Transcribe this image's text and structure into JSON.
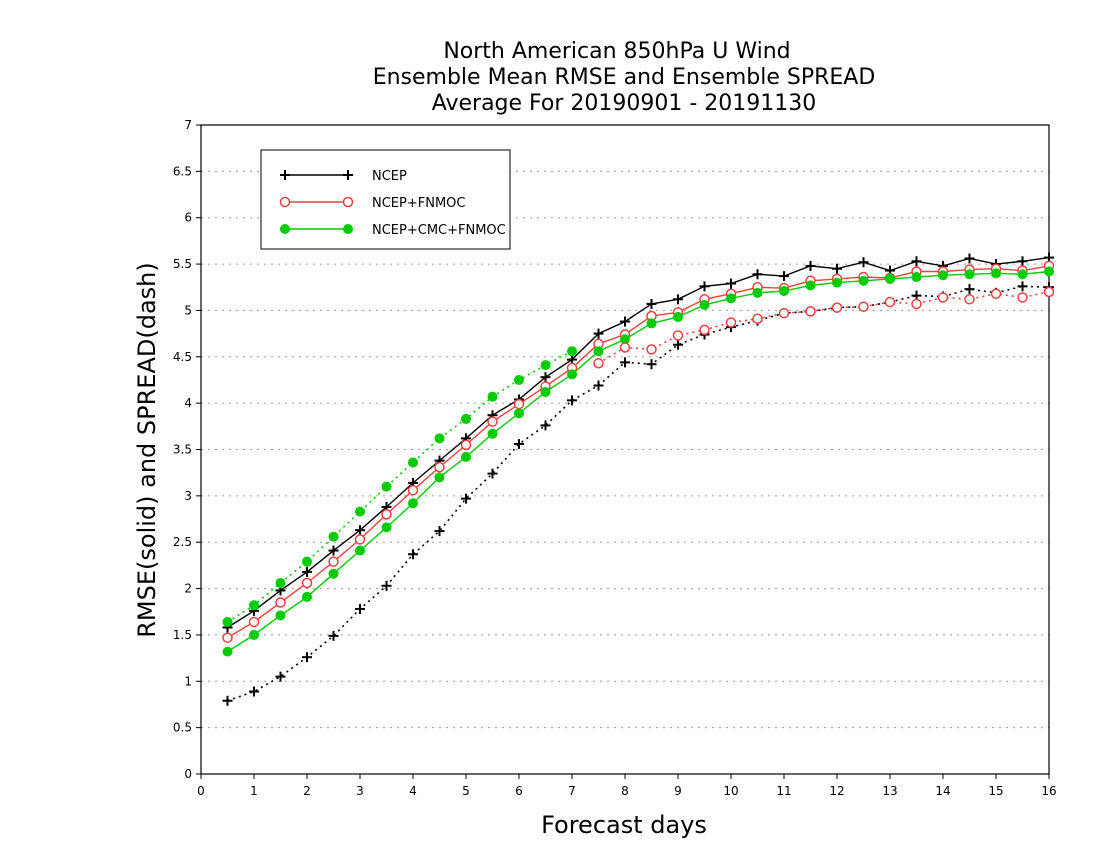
{
  "chart_data": {
    "type": "line",
    "title": [
      "North American 850hPa U Wind",
      "Ensemble Mean RMSE and Ensemble SPREAD",
      "Average For 20190901 - 20191130"
    ],
    "xlabel": "Forecast days",
    "ylabel": "RMSE(solid) and SPREAD(dash)",
    "xlim": [
      0,
      16
    ],
    "ylim": [
      0,
      7
    ],
    "xticks": [
      "0",
      "1",
      "2",
      "3",
      "4",
      "5",
      "6",
      "7",
      "8",
      "9",
      "10",
      "11",
      "12",
      "13",
      "14",
      "15",
      "16"
    ],
    "yticks": [
      "0",
      "0.5",
      "1",
      "1.5",
      "2",
      "2.5",
      "3",
      "3.5",
      "4",
      "4.5",
      "5",
      "5.5",
      "6",
      "6.5",
      "7"
    ],
    "grid": "horizontal dotted",
    "legend": {
      "position": "top-left",
      "entries": [
        "NCEP",
        "NCEP+FNMOC",
        "NCEP+CMC+FNMOC"
      ]
    },
    "x": [
      0.5,
      1,
      1.5,
      2,
      2.5,
      3,
      3.5,
      4,
      4.5,
      5,
      5.5,
      6,
      6.5,
      7,
      7.5,
      8,
      8.5,
      9,
      9.5,
      10,
      10.5,
      11,
      11.5,
      12,
      12.5,
      13,
      13.5,
      14,
      14.5,
      15,
      15.5,
      16
    ],
    "series": [
      {
        "name": "NCEP",
        "kind": "rmse",
        "color": "#000000",
        "marker": "plus",
        "values": [
          1.58,
          1.76,
          1.98,
          2.18,
          2.41,
          2.63,
          2.88,
          3.14,
          3.38,
          3.62,
          3.87,
          4.04,
          4.28,
          4.47,
          4.75,
          4.88,
          5.07,
          5.12,
          5.26,
          5.29,
          5.39,
          5.37,
          5.48,
          5.45,
          5.52,
          5.43,
          5.53,
          5.48,
          5.56,
          5.5,
          5.53,
          5.57
        ]
      },
      {
        "name": "NCEP+FNMOC",
        "kind": "rmse",
        "color": "#f04040",
        "marker": "open-circle",
        "values": [
          1.47,
          1.64,
          1.85,
          2.06,
          2.29,
          2.53,
          2.8,
          3.06,
          3.31,
          3.55,
          3.8,
          3.99,
          4.18,
          4.38,
          4.64,
          4.74,
          4.94,
          4.98,
          5.12,
          5.18,
          5.25,
          5.24,
          5.32,
          5.34,
          5.36,
          5.35,
          5.42,
          5.42,
          5.44,
          5.45,
          5.43,
          5.48
        ]
      },
      {
        "name": "NCEP+CMC+FNMOC",
        "kind": "rmse",
        "color": "#00cc00",
        "marker": "filled-circle",
        "values": [
          1.32,
          1.5,
          1.71,
          1.91,
          2.16,
          2.41,
          2.66,
          2.92,
          3.2,
          3.42,
          3.67,
          3.89,
          4.12,
          4.31,
          4.56,
          4.69,
          4.86,
          4.93,
          5.06,
          5.13,
          5.19,
          5.21,
          5.27,
          5.3,
          5.32,
          5.34,
          5.36,
          5.38,
          5.39,
          5.4,
          5.39,
          5.42
        ]
      },
      {
        "name": "NCEP",
        "kind": "spread",
        "color": "#000000",
        "marker": "plus",
        "values": [
          0.79,
          0.89,
          1.05,
          1.26,
          1.49,
          1.78,
          2.03,
          2.37,
          2.62,
          2.97,
          3.24,
          3.56,
          3.76,
          4.03,
          4.19,
          4.44,
          4.42,
          4.63,
          4.74,
          4.82,
          4.89,
          4.97,
          4.99,
          5.03,
          5.04,
          5.09,
          5.16,
          5.15,
          5.23,
          5.19,
          5.26,
          5.25
        ]
      },
      {
        "name": "NCEP+FNMOC",
        "kind": "spread",
        "color": "#f04040",
        "marker": "open-circle",
        "values": [
          null,
          null,
          null,
          null,
          null,
          null,
          null,
          null,
          null,
          null,
          null,
          null,
          null,
          null,
          4.43,
          4.6,
          4.58,
          4.73,
          4.79,
          4.87,
          4.91,
          4.97,
          4.99,
          5.03,
          5.04,
          5.09,
          5.07,
          5.14,
          5.12,
          5.18,
          5.14,
          5.2
        ]
      },
      {
        "name": "NCEP+CMC+FNMOC",
        "kind": "spread",
        "color": "#00cc00",
        "marker": "filled-circle",
        "values": [
          1.64,
          1.82,
          2.06,
          2.29,
          2.56,
          2.83,
          3.1,
          3.36,
          3.62,
          3.83,
          4.07,
          4.25,
          4.41,
          4.56,
          null,
          null,
          null,
          null,
          null,
          null,
          null,
          null,
          null,
          null,
          null,
          null,
          null,
          null,
          null,
          null,
          null,
          null
        ]
      }
    ]
  }
}
